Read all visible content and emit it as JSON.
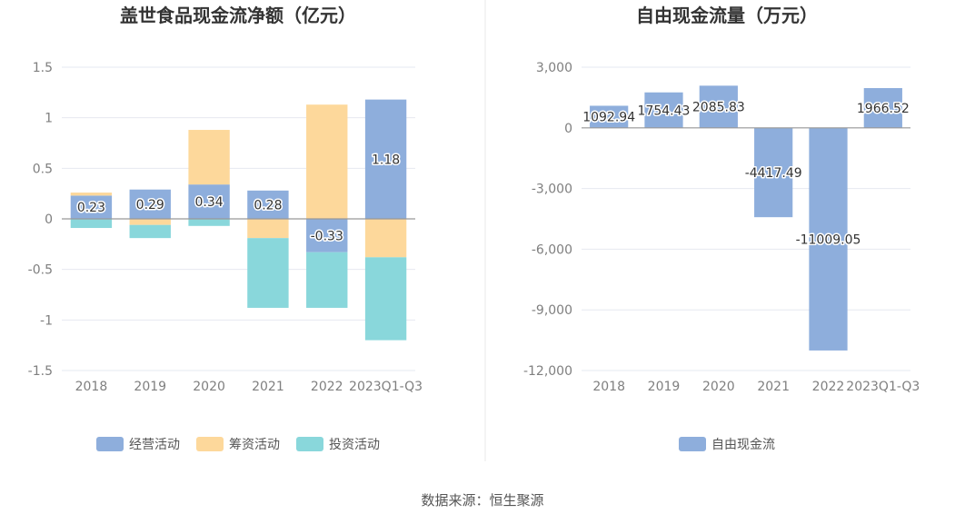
{
  "colors": {
    "operating": "#8eaedc",
    "financing": "#fdd89b",
    "investing": "#89d7db",
    "free_cash_flow": "#8eaedc",
    "title": "#333333",
    "axis_text": "#7f7f7f",
    "grid": "#e6e8f0",
    "zero_line": "#999999",
    "divider": "#e8e8e8"
  },
  "footer": {
    "source": "数据来源：恒生聚源"
  },
  "chart_data": [
    {
      "type": "bar",
      "stacked": true,
      "title": "盖世食品现金流净额（亿元）",
      "categories": [
        "2018",
        "2019",
        "2020",
        "2021",
        "2022",
        "2023Q1-Q3"
      ],
      "ylim": [
        -1.5,
        1.5
      ],
      "yticks": [
        1.5,
        1,
        0.5,
        0,
        -0.5,
        -1,
        -1.5
      ],
      "ytick_labels": [
        "1.5",
        "1",
        "0.5",
        "0",
        "-0.5",
        "-1",
        "-1.5"
      ],
      "series": [
        {
          "name": "经营活动",
          "color_key": "operating",
          "values": [
            0.23,
            0.29,
            0.34,
            0.28,
            -0.33,
            1.18
          ],
          "labels": [
            "0.23",
            "0.29",
            "0.34",
            "0.28",
            "-0.33",
            "1.18"
          ]
        },
        {
          "name": "筹资活动",
          "color_key": "financing",
          "values": [
            0.03,
            -0.06,
            0.54,
            -0.19,
            1.13,
            -0.38
          ]
        },
        {
          "name": "投资活动",
          "color_key": "investing",
          "values": [
            -0.09,
            -0.13,
            -0.07,
            -0.69,
            -0.55,
            -0.82
          ]
        }
      ],
      "legend": [
        "经营活动",
        "筹资活动",
        "投资活动"
      ],
      "legend_position": "bottom"
    },
    {
      "type": "bar",
      "title": "自由现金流量（万元）",
      "categories": [
        "2018",
        "2019",
        "2020",
        "2021",
        "2022",
        "2023Q1-Q3"
      ],
      "ylim": [
        -12000,
        3000
      ],
      "yticks": [
        3000,
        0,
        -3000,
        -6000,
        -9000,
        -12000
      ],
      "ytick_labels": [
        "3,000",
        "0",
        "-3,000",
        "-6,000",
        "-9,000",
        "-12,000"
      ],
      "series": [
        {
          "name": "自由现金流",
          "color_key": "free_cash_flow",
          "values": [
            1092.94,
            1754.43,
            2085.83,
            -4417.49,
            -11009.05,
            1966.52
          ],
          "labels": [
            "1092.94",
            "1754.43",
            "2085.83",
            "-4417.49",
            "-11009.05",
            "1966.52"
          ]
        }
      ],
      "legend": [
        "自由现金流"
      ],
      "legend_position": "bottom"
    }
  ]
}
